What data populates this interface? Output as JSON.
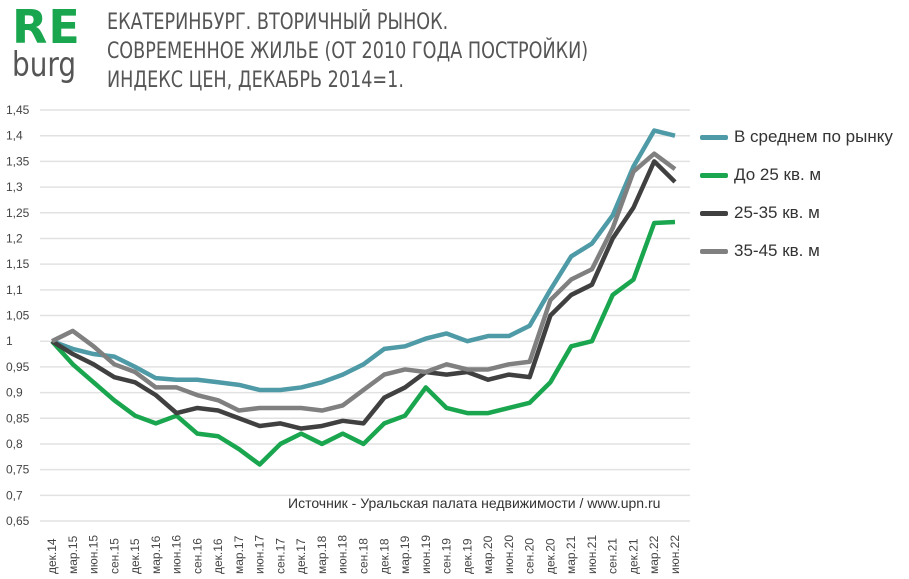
{
  "logo": {
    "top": "RE",
    "bottom": "burg",
    "color": "#1aa64f"
  },
  "title_lines": [
    "ЕКАТЕРИНБУРГ. ВТОРИЧНЫЙ РЫНОК.",
    "СОВРЕМЕННОЕ ЖИЛЬЕ (ОТ 2010 ГОДА ПОСТРОЙКИ)",
    "ИНДЕКС ЦЕН, ДЕКАБРЬ 2014=1."
  ],
  "chart_data": {
    "type": "line",
    "title": "ЕКАТЕРИНБУРГ. ВТОРИЧНЫЙ РЫНОК. СОВРЕМЕННОЕ ЖИЛЬЕ (ОТ 2010 ГОДА ПОСТРОЙКИ) ИНДЕКС ЦЕН, ДЕКАБРЬ 2014=1.",
    "xlabel": "",
    "ylabel": "",
    "ylim": [
      0.65,
      1.45
    ],
    "yticks": [
      "0,65",
      "0,7",
      "0,75",
      "0,8",
      "0,85",
      "0,9",
      "0,95",
      "1",
      "1,05",
      "1,1",
      "1,15",
      "1,2",
      "1,25",
      "1,3",
      "1,35",
      "1,4",
      "1,45"
    ],
    "grid": true,
    "legend": "right",
    "annotation": "Источник - Уральская палата недвижимости / www.upn.ru",
    "categories": [
      "дек.14",
      "мар.15",
      "июн.15",
      "сен.15",
      "дек.15",
      "мар.16",
      "июн.16",
      "сен.16",
      "дек.16",
      "мар.17",
      "июн.17",
      "сен.17",
      "дек.17",
      "мар.18",
      "июн.18",
      "сен.18",
      "дек.18",
      "мар.19",
      "июн.19",
      "сен.19",
      "дек.19",
      "мар.20",
      "июн.20",
      "сен.20",
      "дек.20",
      "мар.21",
      "июн.21",
      "сен.21",
      "дек.21",
      "мар.22",
      "июн.22"
    ],
    "series": [
      {
        "name": "В среднем по рынку",
        "color": "#4e9aa6",
        "values": [
          1.0,
          0.985,
          0.975,
          0.97,
          0.95,
          0.928,
          0.925,
          0.925,
          0.92,
          0.915,
          0.905,
          0.905,
          0.91,
          0.92,
          0.935,
          0.955,
          0.985,
          0.99,
          1.005,
          1.015,
          1.0,
          1.01,
          1.01,
          1.03,
          1.1,
          1.165,
          1.19,
          1.245,
          1.34,
          1.41,
          1.4
        ]
      },
      {
        "name": "До 25 кв. м",
        "color": "#1aa64f",
        "values": [
          1.0,
          0.955,
          0.92,
          0.885,
          0.855,
          0.84,
          0.855,
          0.82,
          0.815,
          0.79,
          0.76,
          0.8,
          0.82,
          0.8,
          0.82,
          0.8,
          0.84,
          0.855,
          0.91,
          0.87,
          0.86,
          0.86,
          0.87,
          0.88,
          0.92,
          0.99,
          1.0,
          1.09,
          1.12,
          1.23,
          1.232
        ]
      },
      {
        "name": "25-35 кв. м",
        "color": "#404040",
        "values": [
          1.0,
          0.975,
          0.955,
          0.93,
          0.92,
          0.895,
          0.86,
          0.87,
          0.865,
          0.85,
          0.835,
          0.84,
          0.83,
          0.835,
          0.845,
          0.84,
          0.89,
          0.91,
          0.94,
          0.935,
          0.94,
          0.925,
          0.935,
          0.93,
          1.05,
          1.09,
          1.11,
          1.2,
          1.26,
          1.35,
          1.31
        ]
      },
      {
        "name": "35-45 кв. м",
        "color": "#808080",
        "values": [
          1.0,
          1.02,
          0.99,
          0.955,
          0.94,
          0.91,
          0.91,
          0.895,
          0.885,
          0.865,
          0.87,
          0.87,
          0.87,
          0.865,
          0.875,
          0.905,
          0.935,
          0.945,
          0.94,
          0.955,
          0.945,
          0.945,
          0.955,
          0.96,
          1.08,
          1.12,
          1.14,
          1.22,
          1.33,
          1.365,
          1.335
        ]
      }
    ]
  }
}
